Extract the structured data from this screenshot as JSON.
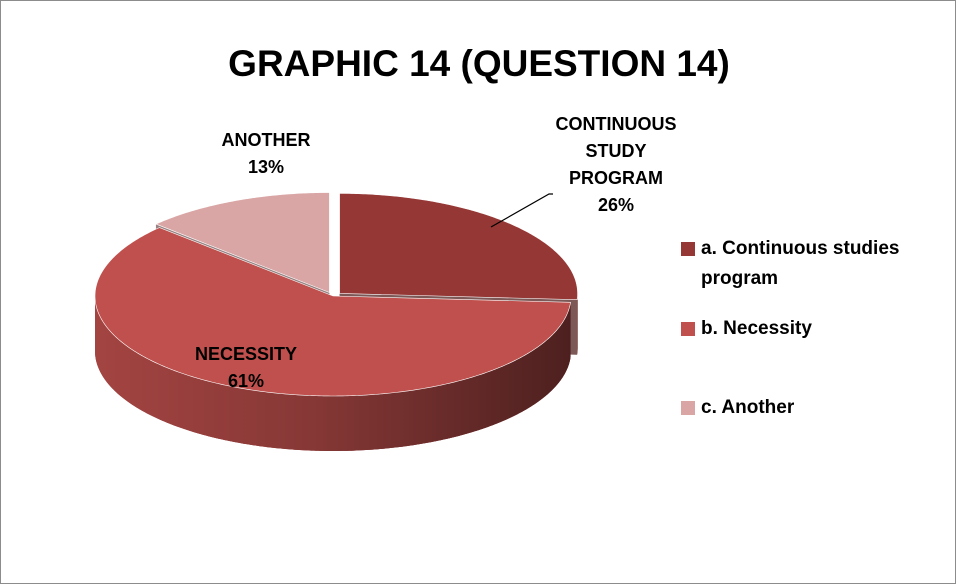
{
  "chart_data": {
    "type": "pie",
    "title": "GRAPHIC 14 (QUESTION 14)",
    "categories": [
      "a. Continuous studies program",
      "b. Necessity",
      "c. Another"
    ],
    "values": [
      26,
      61,
      13
    ],
    "value_labels": [
      "26%",
      "61%",
      "13%"
    ],
    "data_labels": [
      "CONTINUOUS STUDY PROGRAM",
      "NECESSITY",
      "ANOTHER"
    ],
    "colors": [
      "#953735",
      "#c0504d",
      "#d9a6a5"
    ],
    "legend": "right",
    "three_d": true
  }
}
